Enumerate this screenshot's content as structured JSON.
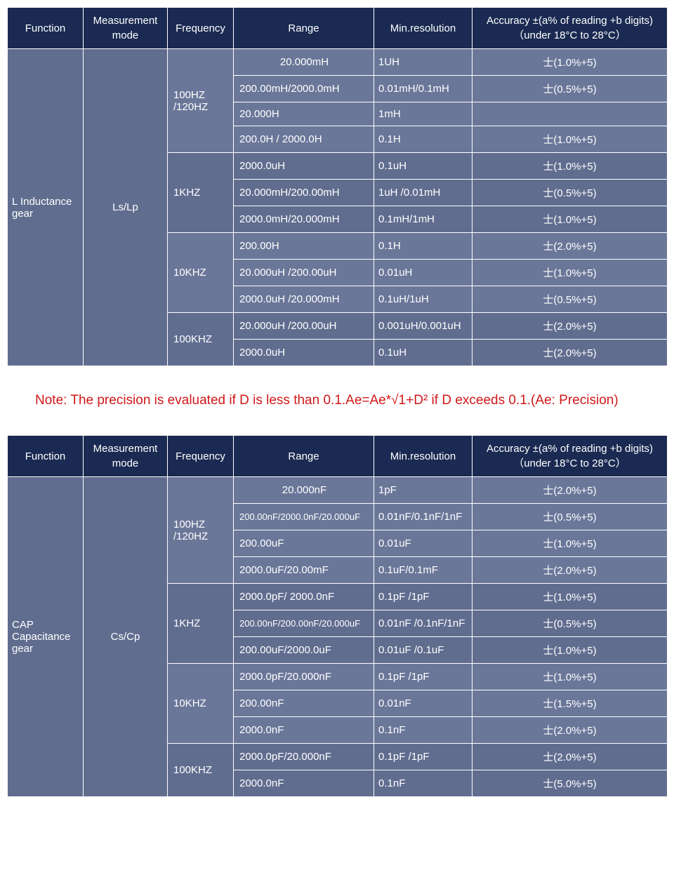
{
  "colors": {
    "header_bg": "#1a2a52",
    "body_dark": "#616d8f",
    "body_mid": "#6b7799",
    "border": "#ffffff",
    "text": "#ffffff",
    "note": "#d01818"
  },
  "columns": {
    "function": "Function",
    "mode": "Measurement mode",
    "frequency": "Frequency",
    "range": "Range",
    "resolution": "Min.resolution",
    "accuracy": "Accuracy ±(a% of reading +b digits)（under 18°C to 28°C）"
  },
  "note_text": "Note: The precision is evaluated if D is less than 0.1.Ae=Ae*√1+D² if D exceeds 0.1.(Ae: Precision)",
  "table1": {
    "function": "L Inductance gear",
    "mode": "Ls/Lp",
    "groups": [
      {
        "freq": "100HZ /120HZ",
        "rows": [
          {
            "range": "20.000mH",
            "range_center": true,
            "res": "1UH",
            "acc": "士(1.0%+5)"
          },
          {
            "range": "200.00mH/2000.0mH",
            "res": "0.01mH/0.1mH",
            "acc": "士(0.5%+5)"
          },
          {
            "range": "20.000H",
            "res": "1mH",
            "acc": ""
          },
          {
            "range": "200.0H / 2000.0H",
            "res": "0.1H",
            "acc": "士(1.0%+5)"
          }
        ]
      },
      {
        "freq": "1KHZ",
        "rows": [
          {
            "range": "2000.0uH",
            "res": "0.1uH",
            "acc": "士(1.0%+5)"
          },
          {
            "range": "20.000mH/200.00mH",
            "res": "1uH /0.01mH",
            "acc": "士(0.5%+5)"
          },
          {
            "range": "2000.0mH/20.000mH",
            "res": "0.1mH/1mH",
            "acc": "士(1.0%+5)"
          }
        ]
      },
      {
        "freq": "10KHZ",
        "rows": [
          {
            "range": "200.00H",
            "res": "0.1H",
            "acc": "士(2.0%+5)"
          },
          {
            "range": "20.000uH /200.00uH",
            "res": "0.01uH",
            "acc": "士(1.0%+5)"
          },
          {
            "range": "2000.0uH /20.000mH",
            "res": "0.1uH/1uH",
            "acc": "士(0.5%+5)"
          }
        ]
      },
      {
        "freq": "100KHZ",
        "rows": [
          {
            "range": "20.000uH /200.00uH",
            "res": "0.001uH/0.001uH",
            "acc": "士(2.0%+5)"
          },
          {
            "range": "2000.0uH",
            "res": "0.1uH",
            "acc": "士(2.0%+5)"
          }
        ]
      }
    ]
  },
  "table2": {
    "function": "CAP Capacitance gear",
    "mode": "Cs/Cp",
    "groups": [
      {
        "freq": "100HZ /120HZ",
        "rows": [
          {
            "range": "20.000nF",
            "range_center": true,
            "res": "1pF",
            "acc": "士(2.0%+5)"
          },
          {
            "range": "200.00nF/2000.0nF/20.000uF",
            "small": true,
            "res": "0.01nF/0.1nF/1nF",
            "acc": "士(0.5%+5)"
          },
          {
            "range": "200.00uF",
            "res": "0.01uF",
            "acc": "士(1.0%+5)"
          },
          {
            "range": "2000.0uF/20.00mF",
            "res": "0.1uF/0.1mF",
            "acc": "士(2.0%+5)"
          }
        ]
      },
      {
        "freq": "1KHZ",
        "rows": [
          {
            "range": "2000.0pF/ 2000.0nF",
            "res": "0.1pF  /1pF",
            "acc": "士(1.0%+5)"
          },
          {
            "range": "200.00nF/200.00nF/20.000uF",
            "small": true,
            "res": "0.01nF /0.1nF/1nF",
            "acc": "士(0.5%+5)"
          },
          {
            "range": "200.00uF/2000.0uF",
            "res": "0.01uF /0.1uF",
            "acc": "士(1.0%+5)"
          }
        ]
      },
      {
        "freq": "10KHZ",
        "rows": [
          {
            "range": "2000.0pF/20.000nF",
            "res": "0.1pF /1pF",
            "acc": "士(1.0%+5)"
          },
          {
            "range": "200.00nF",
            "res": "0.01nF",
            "acc": "士(1.5%+5)"
          },
          {
            "range": "2000.0nF",
            "res": "0.1nF",
            "acc": "士(2.0%+5)"
          }
        ]
      },
      {
        "freq": "100KHZ",
        "rows": [
          {
            "range": "2000.0pF/20.000nF",
            "res": "0.1pF /1pF",
            "acc": "士(2.0%+5)"
          },
          {
            "range": "2000.0nF",
            "res": "0.1nF",
            "acc": "士(5.0%+5)"
          }
        ]
      }
    ]
  }
}
